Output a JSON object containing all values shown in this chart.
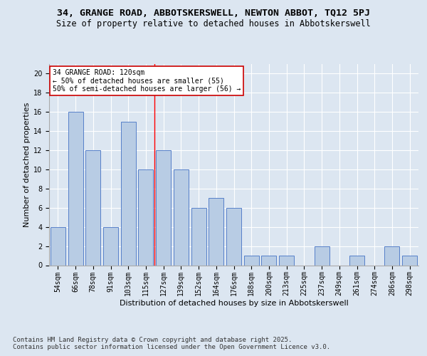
{
  "title": "34, GRANGE ROAD, ABBOTSKERSWELL, NEWTON ABBOT, TQ12 5PJ",
  "subtitle": "Size of property relative to detached houses in Abbotskerswell",
  "xlabel": "Distribution of detached houses by size in Abbotskerswell",
  "ylabel": "Number of detached properties",
  "categories": [
    "54sqm",
    "66sqm",
    "78sqm",
    "91sqm",
    "103sqm",
    "115sqm",
    "127sqm",
    "139sqm",
    "152sqm",
    "164sqm",
    "176sqm",
    "188sqm",
    "200sqm",
    "213sqm",
    "225sqm",
    "237sqm",
    "249sqm",
    "261sqm",
    "274sqm",
    "286sqm",
    "298sqm"
  ],
  "values": [
    4,
    16,
    12,
    4,
    15,
    10,
    12,
    10,
    6,
    7,
    6,
    1,
    1,
    1,
    0,
    2,
    0,
    1,
    0,
    2,
    1
  ],
  "bar_color": "#b8cce4",
  "bar_edge_color": "#4472c4",
  "red_line_x": 5.5,
  "annotation_text": "34 GRANGE ROAD: 120sqm\n← 50% of detached houses are smaller (55)\n50% of semi-detached houses are larger (56) →",
  "annotation_box_color": "#ffffff",
  "annotation_box_edge": "#cc0000",
  "ylim": [
    0,
    21
  ],
  "yticks": [
    0,
    2,
    4,
    6,
    8,
    10,
    12,
    14,
    16,
    18,
    20
  ],
  "background_color": "#dce6f1",
  "plot_background": "#dce6f1",
  "footer": "Contains HM Land Registry data © Crown copyright and database right 2025.\nContains public sector information licensed under the Open Government Licence v3.0.",
  "grid_color": "#ffffff",
  "title_fontsize": 9.5,
  "subtitle_fontsize": 8.5,
  "axis_label_fontsize": 8,
  "tick_fontsize": 7,
  "annotation_fontsize": 7,
  "footer_fontsize": 6.5
}
